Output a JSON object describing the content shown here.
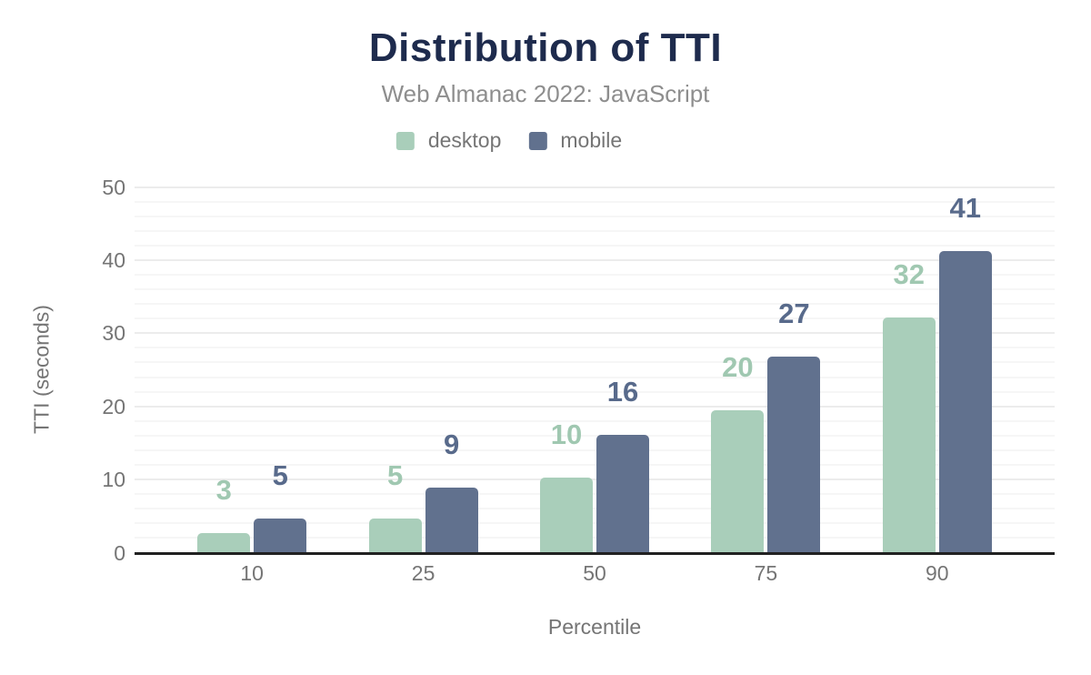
{
  "chart_data": {
    "type": "bar",
    "title": "Distribution of TTI",
    "subtitle": "Web Almanac 2022: JavaScript",
    "xlabel": "Percentile",
    "ylabel": "TTI (seconds)",
    "categories": [
      "10",
      "25",
      "50",
      "75",
      "90"
    ],
    "series": [
      {
        "name": "desktop",
        "color": "#a9ceba",
        "label_color": "#a0c8b1",
        "values": [
          2.7,
          4.7,
          10.2,
          19.5,
          32.1
        ],
        "labels": [
          "3",
          "5",
          "10",
          "20",
          "32"
        ]
      },
      {
        "name": "mobile",
        "color": "#61718e",
        "label_color": "#586a8b",
        "values": [
          4.7,
          8.9,
          16.1,
          26.8,
          41.2
        ],
        "labels": [
          "5",
          "9",
          "16",
          "27",
          "41"
        ]
      }
    ],
    "ylim": [
      0,
      50
    ],
    "yticks": [
      0,
      10,
      20,
      30,
      40,
      50
    ],
    "grid": {
      "show": true,
      "minor_step": 2,
      "major_step": 10
    },
    "legend_position": "top",
    "colors": {
      "title": "#1e2b4d",
      "subtitle": "#8e8e8e",
      "axis_text": "#757575",
      "axis_line": "#212121",
      "gridline_major": "#ececec",
      "gridline_minor": "#f6f6f6",
      "background": "#ffffff"
    }
  }
}
